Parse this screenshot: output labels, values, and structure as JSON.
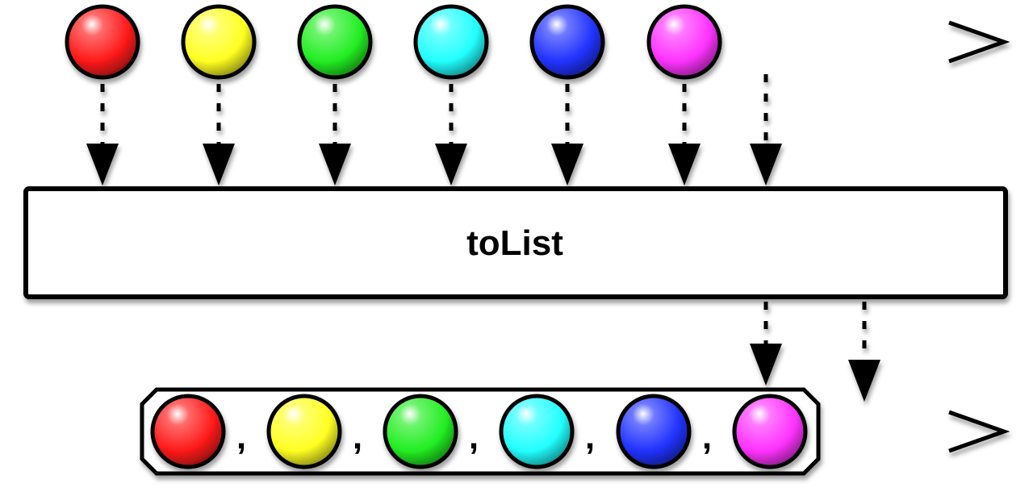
{
  "operator": {
    "label": "toList"
  },
  "items": [
    {
      "color": "#ff1a1a"
    },
    {
      "color": "#ffff22"
    },
    {
      "color": "#22ee22"
    },
    {
      "color": "#22ffff"
    },
    {
      "color": "#2233ff"
    },
    {
      "color": "#ff33ff"
    }
  ],
  "separator": ",",
  "colors": {
    "stroke": "#000000",
    "background": "#ffffff",
    "shadow": "#9a9a9a"
  }
}
